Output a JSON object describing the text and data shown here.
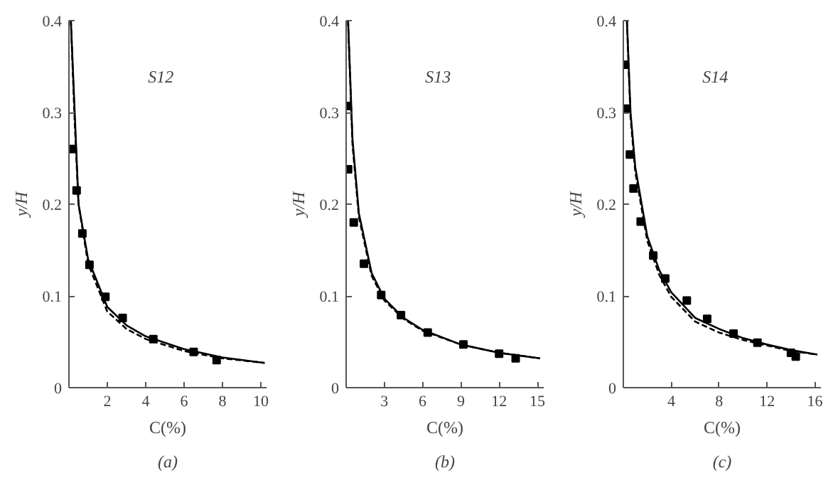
{
  "chart_data": [
    {
      "type": "scatter",
      "title": "S12",
      "xlabel": "C(%)",
      "ylabel": "y/H",
      "annotations": [
        "(a)"
      ],
      "xlim": [
        0,
        10.3
      ],
      "ylim": [
        0,
        0.4
      ],
      "xticks": [
        2,
        4,
        6,
        8,
        10
      ],
      "yticks": [
        0,
        0.1,
        0.2,
        0.3,
        0.4
      ],
      "grid": false,
      "series": [
        {
          "marker": "square",
          "color": "#000000",
          "x": [
            0.19,
            0.4,
            0.7,
            1.07,
            1.9,
            2.8,
            4.4,
            6.5,
            7.7
          ],
          "values": [
            0.26,
            0.215,
            0.168,
            0.134,
            0.099,
            0.076,
            0.053,
            0.039,
            0.03
          ]
        },
        {
          "type": "line",
          "line_style": "solid",
          "color": "#000000",
          "x": [
            0.1,
            0.3,
            0.5,
            1,
            2,
            3,
            4,
            6,
            8,
            10.2
          ],
          "values": [
            0.4,
            0.3,
            0.2,
            0.14,
            0.088,
            0.068,
            0.056,
            0.042,
            0.033,
            0.027
          ]
        },
        {
          "type": "line",
          "line_style": "dashed",
          "color": "#000000",
          "x": [
            0.1,
            0.3,
            0.5,
            1,
            2,
            3,
            4,
            6,
            8,
            10.2
          ],
          "values": [
            0.4,
            0.29,
            0.2,
            0.135,
            0.083,
            0.064,
            0.053,
            0.04,
            0.032,
            0.027
          ]
        }
      ]
    },
    {
      "type": "scatter",
      "title": "S13",
      "xlabel": "C(%)",
      "ylabel": "y/H",
      "annotations": [
        "(b)"
      ],
      "xlim": [
        0,
        15.5
      ],
      "ylim": [
        0,
        0.4
      ],
      "xticks": [
        3,
        6,
        9,
        12,
        15
      ],
      "yticks": [
        0,
        0.1,
        0.2,
        0.3,
        0.4
      ],
      "grid": false,
      "series": [
        {
          "marker": "square",
          "color": "#000000",
          "x": [
            0.1,
            0.15,
            0.6,
            1.4,
            2.75,
            4.3,
            6.4,
            9.2,
            12.0,
            13.3
          ],
          "values": [
            0.307,
            0.238,
            0.18,
            0.135,
            0.101,
            0.079,
            0.06,
            0.047,
            0.037,
            0.032
          ]
        },
        {
          "type": "line",
          "line_style": "solid",
          "color": "#000000",
          "x": [
            0.15,
            0.5,
            1,
            2,
            3,
            4.5,
            6,
            9,
            12,
            15.2
          ],
          "values": [
            0.4,
            0.27,
            0.19,
            0.125,
            0.097,
            0.076,
            0.063,
            0.047,
            0.038,
            0.032
          ]
        },
        {
          "type": "line",
          "line_style": "dashed",
          "color": "#000000",
          "x": [
            0.15,
            0.5,
            1,
            2,
            3,
            4.5,
            6,
            9,
            12,
            15.2
          ],
          "values": [
            0.4,
            0.265,
            0.186,
            0.122,
            0.095,
            0.075,
            0.062,
            0.047,
            0.038,
            0.032
          ]
        }
      ]
    },
    {
      "type": "scatter",
      "title": "S14",
      "xlabel": "C(%)",
      "ylabel": "y/H",
      "annotations": [
        "(c)"
      ],
      "xlim": [
        0,
        16.5
      ],
      "ylim": [
        0,
        0.4
      ],
      "xticks": [
        4,
        8,
        12,
        16
      ],
      "yticks": [
        0,
        0.1,
        0.2,
        0.3,
        0.4
      ],
      "grid": false,
      "series": [
        {
          "marker": "square",
          "color": "#000000",
          "x": [
            0.1,
            0.2,
            0.55,
            0.85,
            1.45,
            2.5,
            3.5,
            5.3,
            7.0,
            9.2,
            11.2,
            14.0,
            14.4
          ],
          "values": [
            0.352,
            0.304,
            0.254,
            0.217,
            0.181,
            0.144,
            0.119,
            0.095,
            0.075,
            0.059,
            0.049,
            0.038,
            0.034
          ]
        },
        {
          "type": "line",
          "line_style": "solid",
          "color": "#000000",
          "x": [
            0.3,
            0.6,
            1,
            2,
            3,
            4,
            6,
            8,
            10,
            12,
            14,
            16.2
          ],
          "values": [
            0.4,
            0.3,
            0.24,
            0.165,
            0.128,
            0.104,
            0.076,
            0.064,
            0.054,
            0.047,
            0.041,
            0.036
          ]
        },
        {
          "type": "line",
          "line_style": "dashed",
          "color": "#000000",
          "x": [
            0.3,
            0.6,
            1,
            2,
            3,
            4,
            6,
            8,
            10,
            12,
            14,
            16.2
          ],
          "values": [
            0.4,
            0.295,
            0.235,
            0.16,
            0.123,
            0.099,
            0.072,
            0.06,
            0.052,
            0.046,
            0.04,
            0.036
          ]
        }
      ]
    }
  ]
}
